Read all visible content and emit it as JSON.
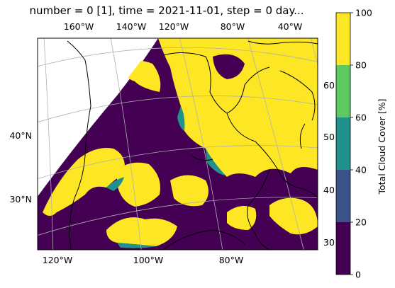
{
  "title": "number = 0 [1], time = 2021-11-01, step = 0 day...",
  "colorbar": {
    "label": "Total Cloud Cover [%]",
    "ticks": [
      "0",
      "20",
      "40",
      "60",
      "80",
      "100"
    ],
    "levels": [
      {
        "min": 0,
        "max": 20,
        "color": "#440154"
      },
      {
        "min": 20,
        "max": 40,
        "color": "#3b528b"
      },
      {
        "min": 40,
        "max": 60,
        "color": "#21918c"
      },
      {
        "min": 60,
        "max": 80,
        "color": "#5ec962"
      },
      {
        "min": 80,
        "max": 100,
        "color": "#fde725"
      }
    ]
  },
  "map": {
    "top_lon_labels": [
      "160°W",
      "140°W",
      "120°W",
      "80°W",
      "40°W"
    ],
    "bottom_lon_labels": [
      "120°W",
      "100°W",
      "80°W"
    ],
    "left_lat_labels": [
      "40°N",
      "30°N"
    ],
    "right_lat_labels": [
      "60",
      "50",
      "40",
      "30"
    ],
    "gridlines": true,
    "coastlines": true
  }
}
